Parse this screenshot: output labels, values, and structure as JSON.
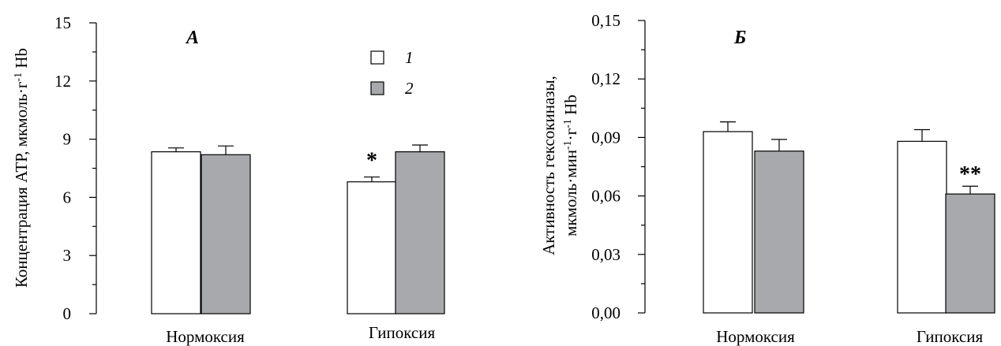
{
  "colors": {
    "series1": "#ffffff",
    "series2": "#a7a9ac",
    "stroke": "#000000"
  },
  "legend": {
    "items": [
      {
        "label": "1"
      },
      {
        "label": "2"
      }
    ]
  },
  "chart_data": [
    {
      "type": "bar",
      "panel": "А",
      "ylabel_parts": [
        "Концентрация АТР, мкмоль·г",
        "-1",
        " Hb"
      ],
      "ylim": [
        0,
        15
      ],
      "yticks": [
        0,
        3,
        6,
        9,
        12,
        15
      ],
      "ytick_labels": [
        "0",
        "3",
        "6",
        "9",
        "12",
        "15"
      ],
      "categories": [
        "Нормоксия",
        "Гипоксия"
      ],
      "series": [
        {
          "name": "1",
          "values": [
            8.35,
            6.8
          ],
          "errors": [
            0.2,
            0.25
          ]
        },
        {
          "name": "2",
          "values": [
            8.2,
            8.35
          ],
          "errors": [
            0.45,
            0.35
          ]
        }
      ],
      "annotations": [
        {
          "text": "*",
          "category": 1,
          "series": 0
        }
      ]
    },
    {
      "type": "bar",
      "panel": "Б",
      "ylabel_line1": "Активность гексокиназы,",
      "ylabel_line2_parts": [
        "мкмоль·мин",
        "-1",
        "·г",
        "-1",
        " Hb"
      ],
      "ylim": [
        0,
        0.15
      ],
      "yticks": [
        0,
        0.03,
        0.06,
        0.09,
        0.12,
        0.15
      ],
      "ytick_labels": [
        "0,00",
        "0,03",
        "0,06",
        "0,09",
        "0,12",
        "0,15"
      ],
      "categories": [
        "Нормоксия",
        "Гипоксия"
      ],
      "series": [
        {
          "name": "1",
          "values": [
            0.093,
            0.088
          ],
          "errors": [
            0.005,
            0.006
          ]
        },
        {
          "name": "2",
          "values": [
            0.083,
            0.061
          ],
          "errors": [
            0.006,
            0.004
          ]
        }
      ],
      "annotations": [
        {
          "text": "**",
          "category": 1,
          "series": 1
        }
      ]
    }
  ]
}
